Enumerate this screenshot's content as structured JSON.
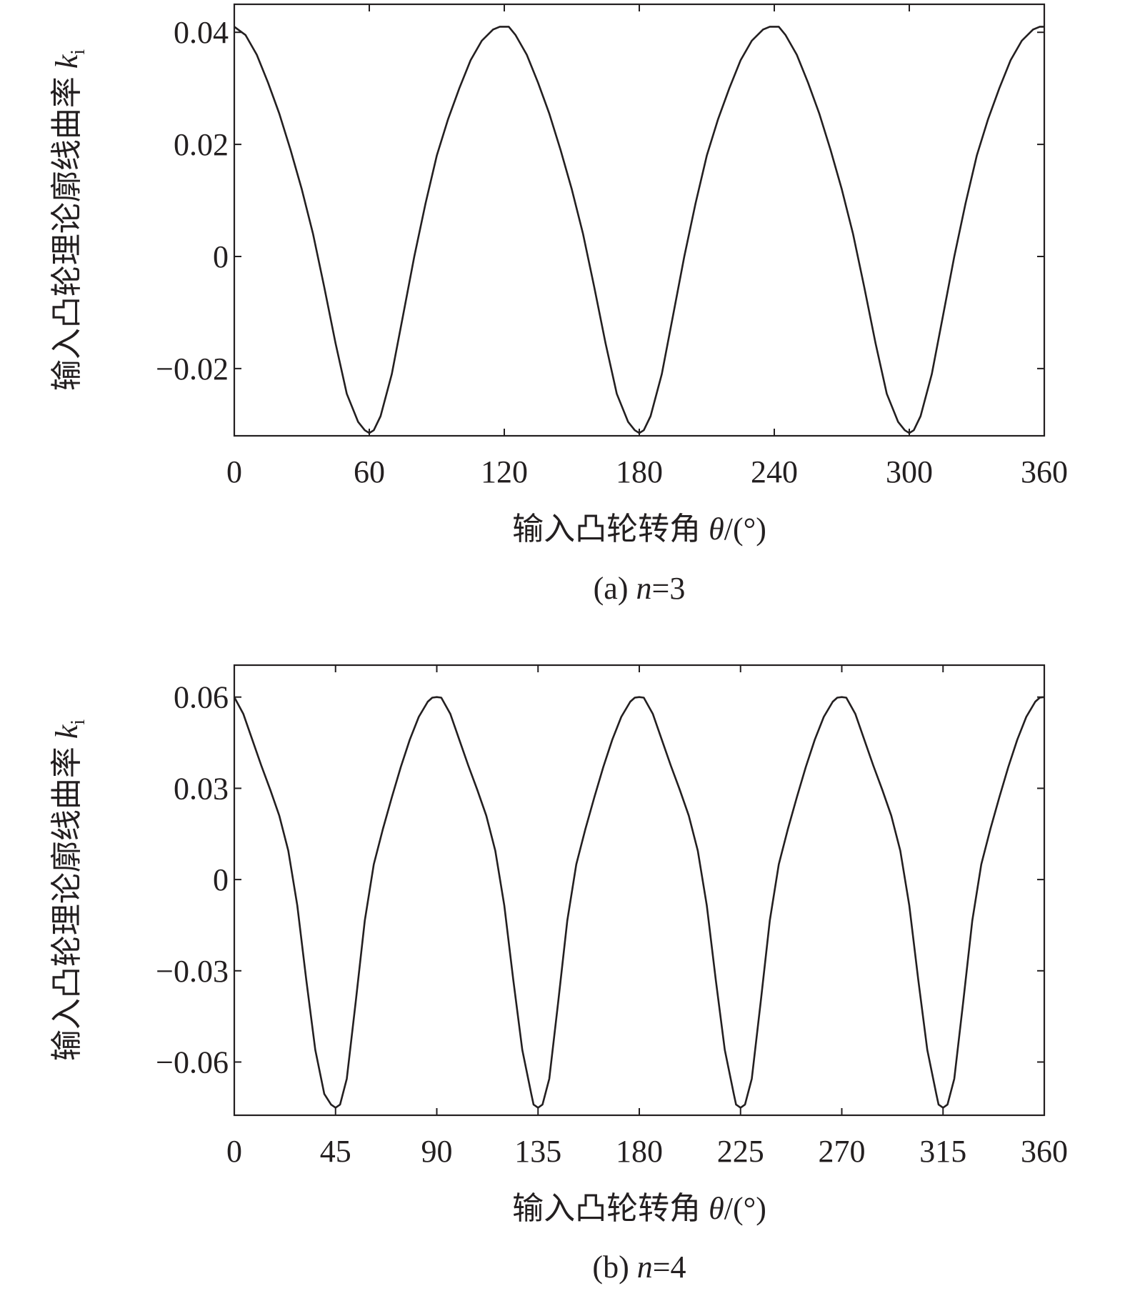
{
  "chart_data": [
    {
      "type": "line",
      "id": "a",
      "caption": "(a) n=3",
      "caption_parts": [
        "(a) ",
        "n",
        "=3"
      ],
      "xlabel": "输入凸轮转角 θ/(°)",
      "xlabel_parts": [
        "输入凸轮转角 ",
        "θ",
        "/(°)"
      ],
      "ylabel": "输入凸轮理论廓线曲率 ki",
      "ylabel_parts": [
        "输入凸轮理论廓线曲率 ",
        "k",
        "i"
      ],
      "xlim": [
        0,
        360
      ],
      "ylim": [
        -0.032,
        0.045
      ],
      "xticks": [
        0,
        60,
        120,
        180,
        240,
        300,
        360
      ],
      "xtick_labels": [
        "0",
        "60",
        "120",
        "180",
        "240",
        "300",
        "360"
      ],
      "yticks": [
        -0.02,
        0,
        0.02,
        0.04
      ],
      "ytick_labels": [
        "−0.02",
        "0",
        "0.02",
        "0.04"
      ],
      "grid": false,
      "n": 3,
      "series": [
        {
          "x": [
            0,
            5,
            10,
            15,
            20,
            25,
            30,
            35,
            40,
            45,
            50,
            55,
            58,
            60,
            62,
            65,
            70,
            75,
            80,
            85,
            90,
            95,
            100,
            105,
            110,
            115,
            118,
            120,
            122,
            125,
            130,
            135,
            140,
            145,
            150,
            155,
            160,
            165,
            170,
            175,
            178,
            180,
            182,
            185,
            190,
            195,
            200,
            205,
            210,
            215,
            220,
            225,
            230,
            235,
            238,
            240,
            242,
            245,
            250,
            255,
            260,
            265,
            270,
            275,
            280,
            285,
            290,
            295,
            298,
            300,
            302,
            305,
            310,
            315,
            320,
            325,
            330,
            335,
            340,
            345,
            350,
            355,
            358,
            360
          ],
          "y": [
            0.041,
            0.0395,
            0.036,
            0.031,
            0.0255,
            0.019,
            0.012,
            0.004,
            -0.0055,
            -0.0155,
            -0.0245,
            -0.0295,
            -0.031,
            -0.0315,
            -0.031,
            -0.0285,
            -0.021,
            -0.0105,
            0.0,
            0.0095,
            0.018,
            0.0245,
            0.03,
            0.035,
            0.0385,
            0.0405,
            0.041,
            0.041,
            0.041,
            0.0395,
            0.036,
            0.031,
            0.0255,
            0.019,
            0.012,
            0.004,
            -0.0055,
            -0.0155,
            -0.0245,
            -0.0295,
            -0.031,
            -0.0315,
            -0.031,
            -0.0285,
            -0.021,
            -0.0105,
            0.0,
            0.0095,
            0.018,
            0.0245,
            0.03,
            0.035,
            0.0385,
            0.0405,
            0.041,
            0.041,
            0.041,
            0.0395,
            0.036,
            0.031,
            0.0255,
            0.019,
            0.012,
            0.004,
            -0.0055,
            -0.0155,
            -0.0245,
            -0.0295,
            -0.031,
            -0.0315,
            -0.031,
            -0.0285,
            -0.021,
            -0.0105,
            0.0,
            0.0095,
            0.018,
            0.0245,
            0.03,
            0.035,
            0.0385,
            0.0405,
            0.041,
            0.041
          ]
        }
      ]
    },
    {
      "type": "line",
      "id": "b",
      "caption": "(b) n=4",
      "caption_parts": [
        "(b) ",
        "n",
        "=4"
      ],
      "xlabel": "输入凸轮转角 θ/(°)",
      "xlabel_parts": [
        "输入凸轮转角 ",
        "θ",
        "/(°)"
      ],
      "ylabel": "输入凸轮理论廓线曲率 ki",
      "ylabel_parts": [
        "输入凸轮理论廓线曲率 ",
        "k",
        "i"
      ],
      "xlim": [
        0,
        360
      ],
      "ylim": [
        -0.0775,
        0.0705
      ],
      "xticks": [
        0,
        45,
        90,
        135,
        180,
        225,
        270,
        315,
        360
      ],
      "xtick_labels": [
        "0",
        "45",
        "90",
        "135",
        "180",
        "225",
        "270",
        "315",
        "360"
      ],
      "yticks": [
        -0.06,
        -0.03,
        0,
        0.03,
        0.06
      ],
      "ytick_labels": [
        "−0.06",
        "−0.03",
        "0",
        "0.03",
        "0.06"
      ],
      "grid": false,
      "n": 4,
      "series": [
        {
          "x": [
            0,
            4,
            8,
            12,
            16,
            20,
            24,
            28,
            32,
            36,
            40,
            43,
            45,
            47,
            50,
            54,
            58,
            62,
            66,
            70,
            74,
            78,
            82,
            86,
            88,
            90,
            92,
            96,
            100,
            104,
            108,
            112,
            116,
            120,
            124,
            128,
            132,
            133,
            135,
            137,
            140,
            144,
            148,
            152,
            156,
            160,
            164,
            168,
            172,
            176,
            178,
            180,
            182,
            186,
            190,
            194,
            198,
            202,
            206,
            210,
            214,
            218,
            222,
            223,
            225,
            227,
            230,
            234,
            238,
            242,
            246,
            250,
            254,
            258,
            262,
            266,
            268,
            270,
            272,
            276,
            280,
            284,
            288,
            292,
            296,
            300,
            304,
            308,
            312,
            313,
            315,
            317,
            320,
            324,
            328,
            332,
            336,
            340,
            344,
            348,
            352,
            356,
            358,
            360
          ],
          "y": [
            0.06,
            0.0545,
            0.046,
            0.0375,
            0.0295,
            0.021,
            0.0095,
            -0.0085,
            -0.033,
            -0.056,
            -0.0705,
            -0.074,
            -0.075,
            -0.074,
            -0.0655,
            -0.04,
            -0.0135,
            0.005,
            0.0165,
            0.027,
            0.037,
            0.046,
            0.0535,
            0.0585,
            0.0598,
            0.06,
            0.0598,
            0.0545,
            0.046,
            0.0375,
            0.0295,
            0.021,
            0.0095,
            -0.0085,
            -0.033,
            -0.056,
            -0.0705,
            -0.074,
            -0.075,
            -0.074,
            -0.0655,
            -0.04,
            -0.0135,
            0.005,
            0.0165,
            0.027,
            0.037,
            0.046,
            0.0535,
            0.0585,
            0.0598,
            0.06,
            0.0598,
            0.0545,
            0.046,
            0.0375,
            0.0295,
            0.021,
            0.0095,
            -0.0085,
            -0.033,
            -0.056,
            -0.0705,
            -0.074,
            -0.075,
            -0.074,
            -0.0655,
            -0.04,
            -0.0135,
            0.005,
            0.0165,
            0.027,
            0.037,
            0.046,
            0.0535,
            0.0585,
            0.0598,
            0.06,
            0.0598,
            0.0545,
            0.046,
            0.0375,
            0.0295,
            0.021,
            0.0095,
            -0.0085,
            -0.033,
            -0.056,
            -0.0705,
            -0.074,
            -0.075,
            -0.074,
            -0.0655,
            -0.04,
            -0.0135,
            0.005,
            0.0165,
            0.027,
            0.037,
            0.046,
            0.0535,
            0.0585,
            0.0598,
            0.06
          ]
        }
      ]
    }
  ]
}
